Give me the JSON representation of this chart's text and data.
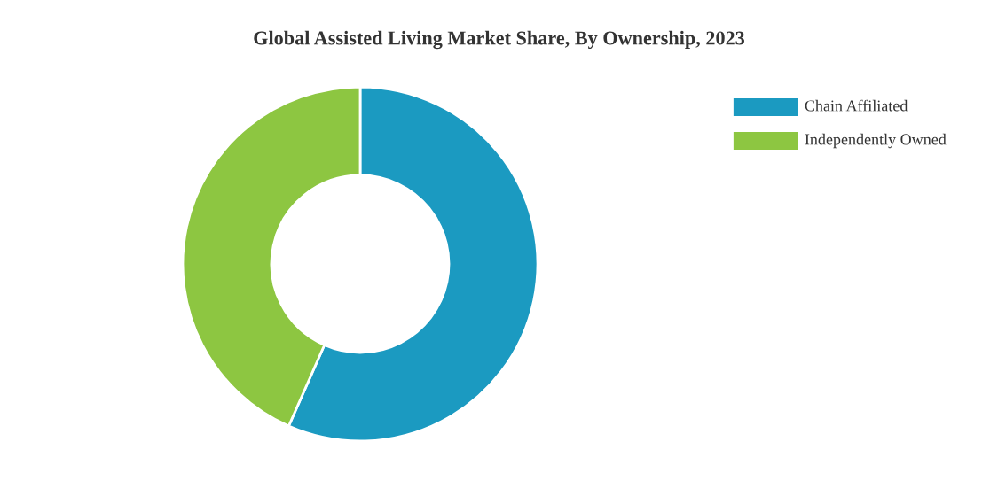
{
  "chart_data": {
    "type": "donut",
    "title": "Global Assisted Living Market Share, By Ownership, 2023",
    "categories": [
      "Chain Affiliated",
      "Independently Owned"
    ],
    "values": [
      56.6,
      43.4
    ],
    "colors": [
      "#1b9ac1",
      "#8dc641"
    ],
    "legend": "top right"
  }
}
